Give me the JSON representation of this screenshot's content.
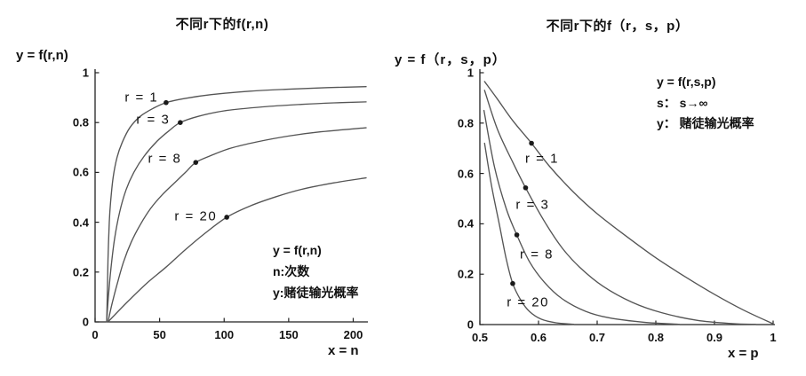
{
  "page": {
    "background": "#ffffff"
  },
  "colors": {
    "curve": "#555555",
    "dot": "#1a1a1a",
    "axis": "#222222",
    "text": "#111111"
  },
  "chart_data": [
    {
      "type": "line",
      "title": "不同r下的f(r,n)",
      "y_axis_title": "y = f(r,n)",
      "x_axis_title": "x = n",
      "xlim": [
        0,
        210
      ],
      "ylim": [
        0,
        1
      ],
      "xticks": [
        0,
        50,
        100,
        150,
        200
      ],
      "xtick_labels": [
        "0",
        "50",
        "100",
        "150",
        "200"
      ],
      "yticks": [
        0,
        0.2,
        0.4,
        0.6,
        0.8,
        1
      ],
      "ytick_labels": [
        "0",
        "0.2",
        "0.4",
        "0.6",
        "0.8",
        "1"
      ],
      "grid": false,
      "annotation": [
        "y = f(r,n)",
        "n:次数",
        "y:赌徒输光概率"
      ],
      "series": [
        {
          "name": "r=1",
          "label": "r = 1",
          "points": [
            [
              9,
              0
            ],
            [
              9.5,
              0.12
            ],
            [
              10,
              0.25
            ],
            [
              11,
              0.4
            ],
            [
              12,
              0.48
            ],
            [
              14,
              0.58
            ],
            [
              17,
              0.66
            ],
            [
              21,
              0.72
            ],
            [
              27,
              0.78
            ],
            [
              35,
              0.825
            ],
            [
              45,
              0.857
            ],
            [
              55,
              0.88
            ],
            [
              70,
              0.897
            ],
            [
              90,
              0.912
            ],
            [
              120,
              0.926
            ],
            [
              150,
              0.934
            ],
            [
              180,
              0.94
            ],
            [
              210,
              0.944
            ]
          ],
          "dot": [
            55,
            0.88
          ],
          "label_pos": [
            36,
            0.9
          ]
        },
        {
          "name": "r=3",
          "label": "r = 3",
          "points": [
            [
              9,
              0
            ],
            [
              10,
              0.08
            ],
            [
              12,
              0.2
            ],
            [
              15,
              0.33
            ],
            [
              19,
              0.44
            ],
            [
              24,
              0.53
            ],
            [
              30,
              0.6
            ],
            [
              38,
              0.665
            ],
            [
              48,
              0.725
            ],
            [
              58,
              0.77
            ],
            [
              66,
              0.8
            ],
            [
              80,
              0.825
            ],
            [
              100,
              0.847
            ],
            [
              130,
              0.863
            ],
            [
              160,
              0.873
            ],
            [
              185,
              0.879
            ],
            [
              210,
              0.883
            ]
          ],
          "dot": [
            66,
            0.8
          ],
          "label_pos": [
            45,
            0.81
          ]
        },
        {
          "name": "r=8",
          "label": "r = 8",
          "points": [
            [
              10,
              0
            ],
            [
              13,
              0.07
            ],
            [
              17,
              0.15
            ],
            [
              22,
              0.24
            ],
            [
              28,
              0.32
            ],
            [
              35,
              0.39
            ],
            [
              43,
              0.455
            ],
            [
              52,
              0.51
            ],
            [
              62,
              0.56
            ],
            [
              70,
              0.6
            ],
            [
              78,
              0.64
            ],
            [
              90,
              0.668
            ],
            [
              105,
              0.697
            ],
            [
              125,
              0.722
            ],
            [
              150,
              0.746
            ],
            [
              175,
              0.763
            ],
            [
              210,
              0.779
            ]
          ],
          "dot": [
            78,
            0.64
          ],
          "label_pos": [
            54,
            0.655
          ]
        },
        {
          "name": "r=20",
          "label": "r = 20",
          "points": [
            [
              10,
              0
            ],
            [
              25,
              0.08
            ],
            [
              40,
              0.155
            ],
            [
              55,
              0.22
            ],
            [
              70,
              0.29
            ],
            [
              85,
              0.355
            ],
            [
              102,
              0.42
            ],
            [
              120,
              0.465
            ],
            [
              140,
              0.502
            ],
            [
              160,
              0.532
            ],
            [
              185,
              0.558
            ],
            [
              210,
              0.578
            ]
          ],
          "dot": [
            102,
            0.42
          ],
          "label_pos": [
            78,
            0.425
          ]
        }
      ]
    },
    {
      "type": "line",
      "title": "不同r下的f（r，s，p）",
      "y_axis_title": "y = f（r，s，p）",
      "x_axis_title": "x = p",
      "xlim": [
        0.5,
        1
      ],
      "ylim": [
        0,
        1
      ],
      "xticks": [
        0.5,
        0.6,
        0.7,
        0.8,
        0.9,
        1
      ],
      "xtick_labels": [
        "0.5",
        "0.6",
        "0.7",
        "0.8",
        "0.9",
        "1"
      ],
      "yticks": [
        0,
        0.2,
        0.4,
        0.6,
        0.8,
        1
      ],
      "ytick_labels": [
        "0",
        "0.2",
        "0.4",
        "0.6",
        "0.8",
        "1"
      ],
      "grid": false,
      "annotation": [
        "y = f(r,s,p)",
        "s： s→∞",
        "y： 赌徒输光概率"
      ],
      "series": [
        {
          "name": "r=1",
          "label": "r = 1",
          "points": [
            [
              0.508,
              0.965
            ],
            [
              0.53,
              0.895
            ],
            [
              0.556,
              0.81
            ],
            [
              0.588,
              0.72
            ],
            [
              0.62,
              0.625
            ],
            [
              0.66,
              0.525
            ],
            [
              0.7,
              0.44
            ],
            [
              0.75,
              0.35
            ],
            [
              0.8,
              0.265
            ],
            [
              0.85,
              0.19
            ],
            [
              0.9,
              0.12
            ],
            [
              0.95,
              0.057
            ],
            [
              1,
              0.003
            ]
          ],
          "dot": [
            0.588,
            0.72
          ],
          "label_pos": [
            0.606,
            0.66
          ]
        },
        {
          "name": "r=3",
          "label": "r = 3",
          "points": [
            [
              0.508,
              0.93
            ],
            [
              0.53,
              0.775
            ],
            [
              0.556,
              0.645
            ],
            [
              0.578,
              0.543
            ],
            [
              0.61,
              0.41
            ],
            [
              0.64,
              0.305
            ],
            [
              0.67,
              0.228
            ],
            [
              0.71,
              0.152
            ],
            [
              0.76,
              0.088
            ],
            [
              0.81,
              0.047
            ],
            [
              0.87,
              0.017
            ],
            [
              0.93,
              0.004
            ],
            [
              0.97,
              0.001
            ]
          ],
          "dot": [
            0.578,
            0.543
          ],
          "label_pos": [
            0.59,
            0.475
          ]
        },
        {
          "name": "r=8",
          "label": "r = 8",
          "points": [
            [
              0.507,
              0.85
            ],
            [
              0.525,
              0.625
            ],
            [
              0.545,
              0.46
            ],
            [
              0.563,
              0.356
            ],
            [
              0.585,
              0.248
            ],
            [
              0.61,
              0.168
            ],
            [
              0.64,
              0.103
            ],
            [
              0.68,
              0.053
            ],
            [
              0.72,
              0.027
            ],
            [
              0.78,
              0.009
            ],
            [
              0.84,
              0.001
            ]
          ],
          "dot": [
            0.563,
            0.356
          ],
          "label_pos": [
            0.597,
            0.278
          ]
        },
        {
          "name": "r=20",
          "label": "r = 20",
          "points": [
            [
              0.508,
              0.72
            ],
            [
              0.52,
              0.55
            ],
            [
              0.533,
              0.4
            ],
            [
              0.545,
              0.26
            ],
            [
              0.556,
              0.163
            ],
            [
              0.57,
              0.096
            ],
            [
              0.585,
              0.051
            ],
            [
              0.605,
              0.021
            ],
            [
              0.63,
              0.007
            ],
            [
              0.66,
              0.001
            ]
          ],
          "dot": [
            0.556,
            0.163
          ],
          "label_pos": [
            0.582,
            0.088
          ]
        }
      ]
    }
  ]
}
